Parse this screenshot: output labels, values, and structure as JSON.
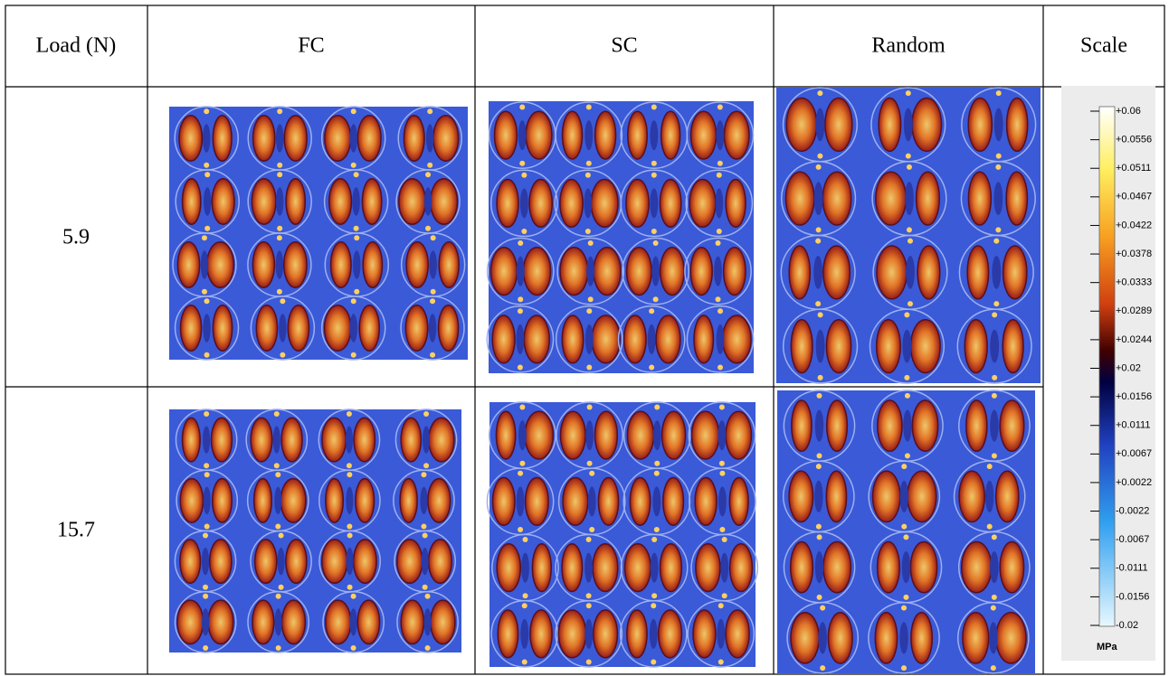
{
  "header": [
    "Load (N)",
    "FC",
    "SC",
    "Random",
    "Scale"
  ],
  "rows": [
    {
      "load": "5.9"
    },
    {
      "load": "15.7"
    }
  ],
  "scale": {
    "labels": [
      "+0.06",
      "+0.0556",
      "+0.0511",
      "+0.0467",
      "+0.0422",
      "+0.0378",
      "+0.0333",
      "+0.0289",
      "+0.0244",
      "+0.02",
      "+0.0156",
      "+0.0111",
      "+0.0067",
      "+0.0022",
      "-0.0022",
      "-0.0067",
      "-0.0111",
      "-0.0156",
      "-0.02"
    ],
    "unit": "MPa"
  }
}
